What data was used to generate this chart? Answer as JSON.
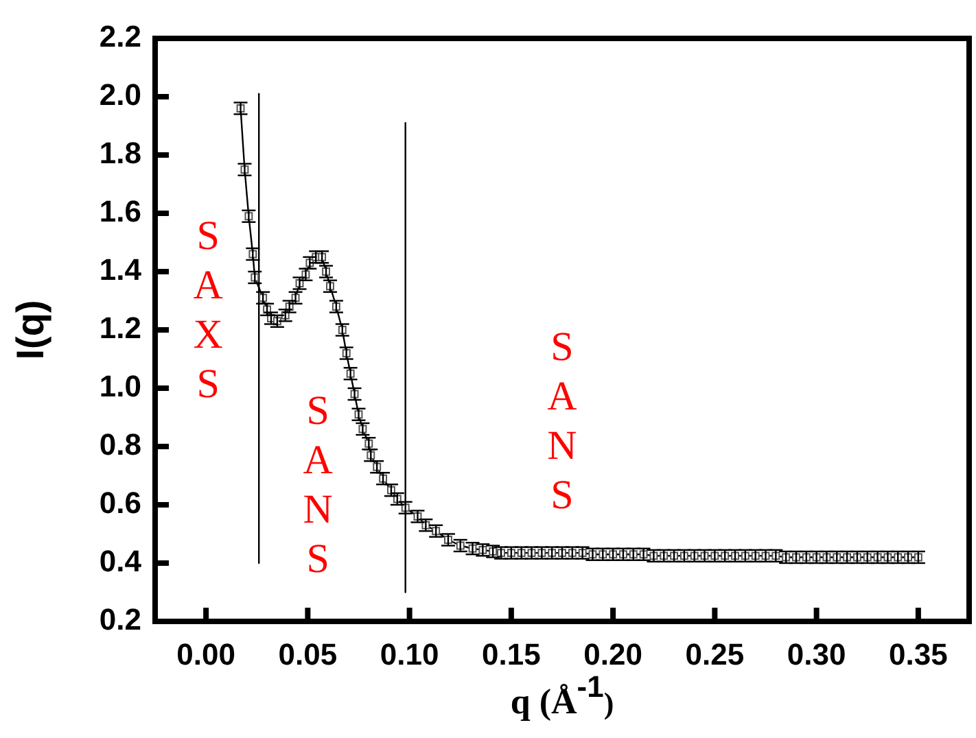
{
  "chart_data": {
    "type": "line",
    "xlabel": "q (Å$^{-1}$)",
    "ylabel": "I(q)",
    "xlim": [
      -0.025,
      0.375
    ],
    "xticks": [
      {
        "value": 0,
        "label": "0.00"
      },
      0.05,
      {
        "value": 0.1,
        "label": "0.10"
      },
      0.15,
      {
        "value": 0.2,
        "label": "0.20"
      },
      0.25,
      {
        "value": 0.3,
        "label": "0.30"
      },
      0.35
    ],
    "ylim": [
      0.2,
      2.2
    ],
    "yticks": [
      0.2,
      0.4,
      0.6,
      0.8,
      {
        "value": 1,
        "label": "1.0"
      },
      1.2,
      1.4,
      1.6,
      1.8,
      {
        "value": 2,
        "label": "2.0"
      },
      2.2
    ],
    "grid": false,
    "legend": false,
    "series": [
      {
        "color": "#000000",
        "marker": "square",
        "line_style": "solid",
        "x": [
          0.017,
          0.019,
          0.021,
          0.023,
          0.024,
          0.028,
          0.03,
          0.032,
          0.035,
          0.039,
          0.041,
          0.044,
          0.046,
          0.049,
          0.051,
          0.054,
          0.057,
          0.059,
          0.061,
          0.064,
          0.067,
          0.069,
          0.071,
          0.073,
          0.075,
          0.077,
          0.08,
          0.081,
          0.084,
          0.087,
          0.091,
          0.094,
          0.098,
          0.104,
          0.108,
          0.113,
          0.119,
          0.125,
          0.131,
          0.136,
          0.141,
          0.145,
          0.15,
          0.155,
          0.16,
          0.165,
          0.17,
          0.175,
          0.18,
          0.185,
          0.19,
          0.195,
          0.2,
          0.205,
          0.21,
          0.215,
          0.22,
          0.225,
          0.23,
          0.235,
          0.24,
          0.245,
          0.25,
          0.255,
          0.26,
          0.265,
          0.27,
          0.275,
          0.28,
          0.285,
          0.29,
          0.295,
          0.3,
          0.305,
          0.31,
          0.315,
          0.32,
          0.325,
          0.33,
          0.335,
          0.34,
          0.345,
          0.35
        ],
        "values": [
          1.96,
          1.75,
          1.59,
          1.46,
          1.38,
          1.31,
          1.27,
          1.24,
          1.23,
          1.25,
          1.28,
          1.31,
          1.36,
          1.39,
          1.43,
          1.45,
          1.45,
          1.4,
          1.35,
          1.28,
          1.2,
          1.12,
          1.05,
          0.98,
          0.91,
          0.86,
          0.81,
          0.77,
          0.73,
          0.69,
          0.65,
          0.62,
          0.59,
          0.56,
          0.53,
          0.51,
          0.48,
          0.46,
          0.45,
          0.445,
          0.44,
          0.435,
          0.435,
          0.435,
          0.435,
          0.435,
          0.435,
          0.435,
          0.435,
          0.435,
          0.43,
          0.43,
          0.43,
          0.43,
          0.43,
          0.43,
          0.425,
          0.425,
          0.425,
          0.425,
          0.425,
          0.425,
          0.425,
          0.425,
          0.425,
          0.425,
          0.425,
          0.425,
          0.425,
          0.42,
          0.42,
          0.42,
          0.42,
          0.42,
          0.42,
          0.42,
          0.42,
          0.42,
          0.42,
          0.42,
          0.42,
          0.42,
          0.42
        ],
        "errors": [
          0.02,
          0.02,
          0.02,
          0.02,
          0.02,
          0.02,
          0.02,
          0.02,
          0.02,
          0.02,
          0.02,
          0.02,
          0.02,
          0.02,
          0.02,
          0.02,
          0.02,
          0.02,
          0.02,
          0.02,
          0.02,
          0.02,
          0.02,
          0.02,
          0.02,
          0.02,
          0.02,
          0.02,
          0.02,
          0.02,
          0.02,
          0.02,
          0.02,
          0.02,
          0.02,
          0.02,
          0.02,
          0.02,
          0.02,
          0.02,
          0.02,
          0.02,
          0.02,
          0.02,
          0.02,
          0.02,
          0.02,
          0.02,
          0.02,
          0.02,
          0.02,
          0.02,
          0.02,
          0.02,
          0.02,
          0.02,
          0.02,
          0.02,
          0.02,
          0.02,
          0.02,
          0.02,
          0.02,
          0.02,
          0.02,
          0.02,
          0.02,
          0.02,
          0.02,
          0.02,
          0.02,
          0.02,
          0.02,
          0.02,
          0.02,
          0.02,
          0.02,
          0.02,
          0.02,
          0.02,
          0.02,
          0.02,
          0.02
        ]
      },
      {
        "color": "#000000",
        "marker": "none",
        "x": [
          0.026,
          0.026
        ],
        "values": [
          2.01,
          0.4
        ]
      },
      {
        "color": "#000000",
        "marker": "none",
        "x": [
          0.098,
          0.098
        ],
        "values": [
          1.91,
          0.3
        ]
      }
    ],
    "annotations": [
      "SAXS",
      "SANS",
      "SANS"
    ]
  }
}
